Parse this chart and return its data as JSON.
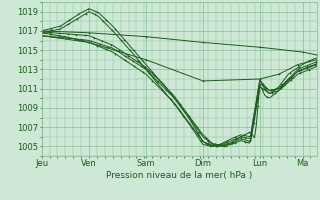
{
  "background_color": "#cde8d5",
  "plot_bg_color": "#cde8d5",
  "grid_color": "#88bb99",
  "line_color": "#1a5c1a",
  "xlabel": "Pression niveau de la mer( hPa )",
  "ylim": [
    1004.0,
    1020.0
  ],
  "yticks": [
    1005,
    1007,
    1009,
    1011,
    1013,
    1015,
    1017,
    1019
  ],
  "xtick_labels": [
    "Jeu",
    "Ven",
    "Sam",
    "Dim",
    "Lun",
    "Ma"
  ],
  "xtick_positions": [
    0,
    20,
    44,
    68,
    92,
    110
  ],
  "total_hours": 116,
  "axis_fontsize": 6.5,
  "tick_fontsize": 6.0
}
